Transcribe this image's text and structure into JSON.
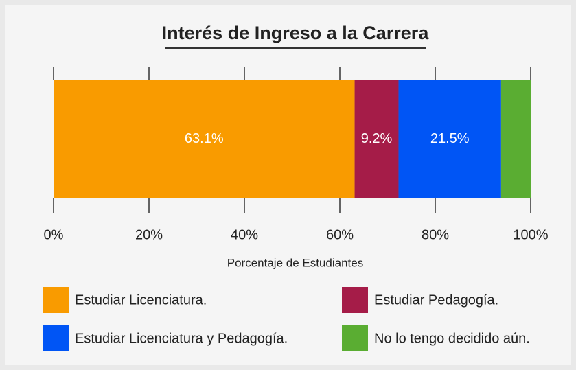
{
  "chart_data": {
    "type": "stacked-bar-horizontal",
    "title": "Interés de Ingreso a la Carrera",
    "xlabel": "Porcentaje de Estudiantes",
    "xlim": [
      0,
      100
    ],
    "xticks": [
      {
        "value": 0,
        "label": "0%"
      },
      {
        "value": 20,
        "label": "20%"
      },
      {
        "value": 40,
        "label": "40%"
      },
      {
        "value": 60,
        "label": "60%"
      },
      {
        "value": 80,
        "label": "80%"
      },
      {
        "value": 100,
        "label": "100%"
      }
    ],
    "series": [
      {
        "name": "Estudiar Licenciatura.",
        "color": "#f99b00",
        "values": [
          63.1
        ],
        "value_labels": [
          "63.1%"
        ]
      },
      {
        "name": "Estudiar Pedagogía.",
        "color": "#a51c48",
        "values": [
          9.2
        ],
        "value_labels": [
          "9.2%"
        ]
      },
      {
        "name": "Estudiar Licenciatura y Pedagogía.",
        "color": "#0055f5",
        "values": [
          21.5
        ],
        "value_labels": [
          "21.5%"
        ]
      },
      {
        "name": "No lo tengo decidido aún.",
        "color": "#5aad32",
        "values": [
          6.2
        ]
      }
    ],
    "legend": "bottom"
  }
}
